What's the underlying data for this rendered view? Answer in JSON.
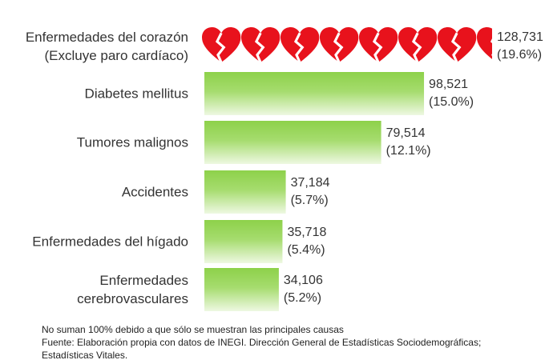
{
  "chart_data": {
    "type": "bar",
    "orientation": "horizontal",
    "categories": [
      "Enfermedades del corazón\n(Excluye paro cardíaco)",
      "Diabetes mellitus",
      "Tumores malignos",
      "Accidentes",
      "Enfermedades del hígado",
      "Enfermedades\ncerebrovasculares"
    ],
    "values": [
      128731,
      98521,
      79514,
      37184,
      35718,
      34106
    ],
    "value_labels": [
      "128,731",
      "98,521",
      "79,514",
      "37,184",
      "35,718",
      "34,106"
    ],
    "percentages": [
      19.6,
      15.0,
      12.1,
      5.7,
      5.4,
      5.2
    ],
    "percentage_labels": [
      "(19.6%)",
      "(15.0%)",
      "(12.1%)",
      "(5.7%)",
      "(5.4%)",
      "(5.2%)"
    ],
    "color": "#8dd14a",
    "heart_color": "#e8121c",
    "notes": [
      "No suman 100% debido a que sólo se muestran las principales causas",
      "Fuente: Elaboración propia con datos de INEGI.  Dirección General de Estadísticas Sociodemográficas;",
      "Estadísticas Vitales."
    ]
  }
}
